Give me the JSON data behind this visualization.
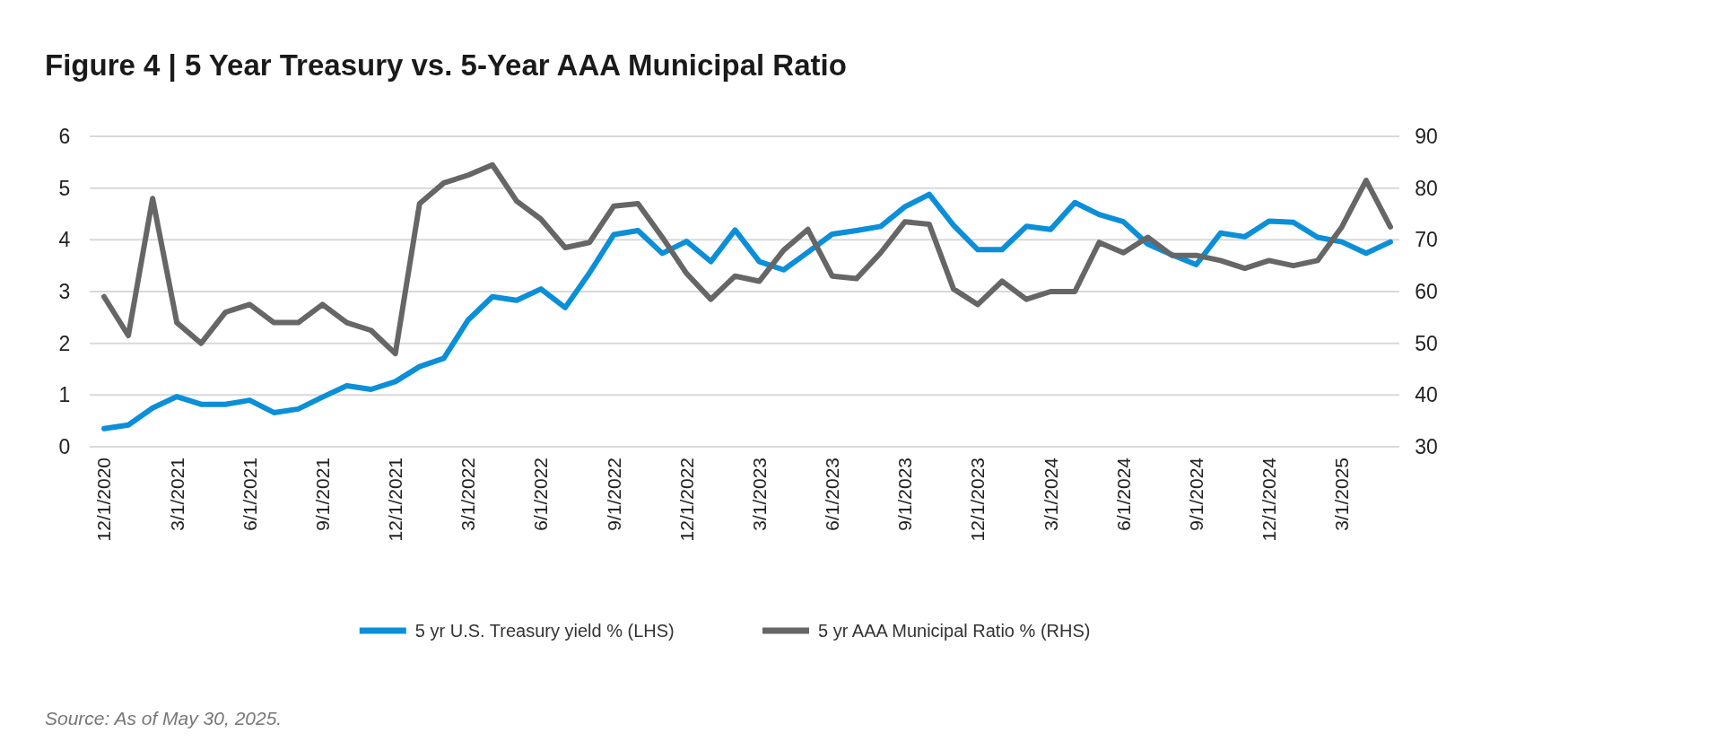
{
  "chart_data": {
    "type": "line",
    "title": "Figure 4  |  5 Year Treasury vs. 5-Year AAA Municipal Ratio",
    "categories": [
      "12/1/2020",
      null,
      null,
      "3/1/2021",
      null,
      null,
      "6/1/2021",
      null,
      null,
      "9/1/2021",
      null,
      null,
      "12/1/2021",
      null,
      null,
      "3/1/2022",
      null,
      null,
      "6/1/2022",
      null,
      null,
      "9/1/2022",
      null,
      null,
      "12/1/2022",
      null,
      null,
      "3/1/2023",
      null,
      null,
      "6/1/2023",
      null,
      null,
      "9/1/2023",
      null,
      null,
      "12/1/2023",
      null,
      null,
      "3/1/2024",
      null,
      null,
      "6/1/2024",
      null,
      null,
      "9/1/2024",
      null,
      null,
      "12/1/2024",
      null,
      null,
      "3/1/2025",
      null,
      null
    ],
    "series": [
      {
        "name": "5 yr U.S. Treasury yield % (LHS)",
        "color": "#0a8fd8",
        "values": [
          0.35,
          0.42,
          0.75,
          0.97,
          0.82,
          0.82,
          0.9,
          0.66,
          0.73,
          0.96,
          1.18,
          1.11,
          1.26,
          1.55,
          1.71,
          2.45,
          2.9,
          2.83,
          3.05,
          2.69,
          3.36,
          4.1,
          4.18,
          3.74,
          3.97,
          3.58,
          4.19,
          3.58,
          3.42,
          3.76,
          4.11,
          4.18,
          4.26,
          4.64,
          4.88,
          4.28,
          3.81,
          3.81,
          4.26,
          4.2,
          4.72,
          4.49,
          4.35,
          3.92,
          3.71,
          3.52,
          4.13,
          4.06,
          4.36,
          4.34,
          4.05,
          3.96,
          3.74,
          3.96
        ]
      },
      {
        "name": "5 yr AAA Municipal Ratio % (RHS)",
        "color": "#666666",
        "axis": "y2",
        "values": [
          59,
          51.5,
          78,
          54,
          50,
          56,
          57.5,
          54,
          54,
          57.5,
          54,
          52.5,
          48,
          77,
          81,
          82.5,
          84.5,
          77.5,
          74,
          68.5,
          69.5,
          76.5,
          77,
          70.5,
          63.5,
          58.5,
          63,
          62,
          68,
          72,
          63,
          62.5,
          67.5,
          73.5,
          73,
          60.5,
          57.5,
          62,
          58.5,
          60,
          60,
          69.5,
          67.5,
          70.5,
          67,
          67,
          66,
          64.5,
          66,
          65,
          66,
          72.5,
          81.5,
          72.5
        ]
      }
    ],
    "ylim": [
      0,
      6
    ],
    "yticks": [
      0,
      1,
      2,
      3,
      4,
      5,
      6
    ],
    "y2lim": [
      30,
      90
    ],
    "y2ticks": [
      30,
      40,
      50,
      60,
      70,
      80,
      90
    ],
    "grid": "y",
    "legend": "bottom",
    "annotations": [
      "Source: As of May 30, 2025."
    ]
  }
}
